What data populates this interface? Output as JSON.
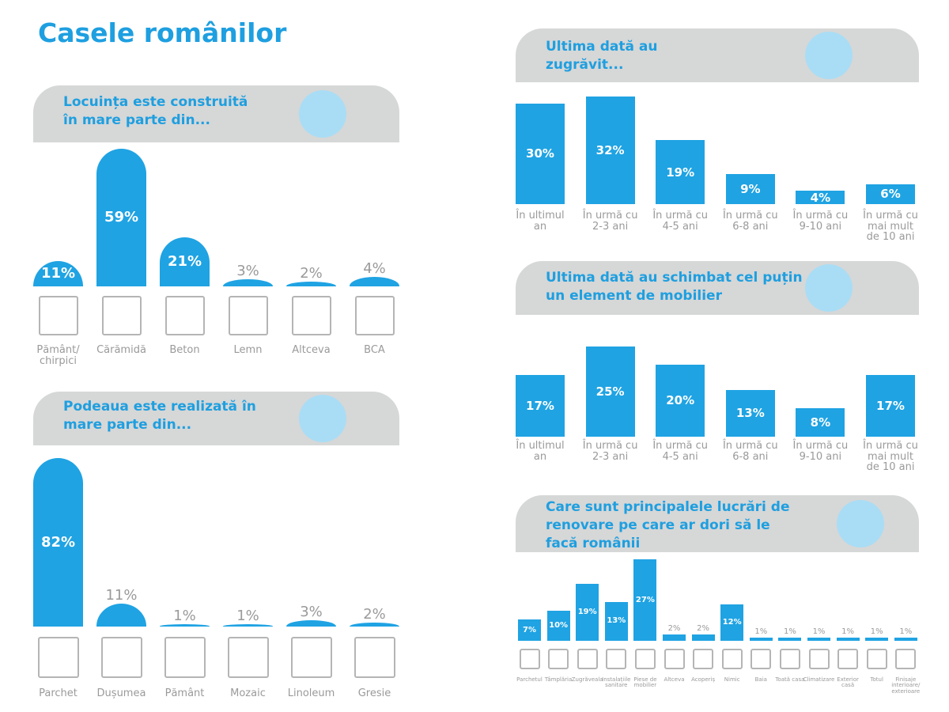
{
  "title": "Casele românilor",
  "chart_data": [
    {
      "type": "bar",
      "title": "Locuința este construită în mare parte din...",
      "color": "#1fa3e3",
      "categories": [
        "Pământ/ chirpici",
        "Cărămidă",
        "Beton",
        "Lemn",
        "Altceva",
        "BCA"
      ],
      "values": [
        11,
        59,
        21,
        3,
        2,
        4
      ],
      "value_labels": [
        "11%",
        "59%",
        "21%",
        "3%",
        "2%",
        "4%"
      ]
    },
    {
      "type": "bar",
      "title": "Podeaua este realizată în mare parte din...",
      "color": "#1fa3e3",
      "categories": [
        "Parchet",
        "Dușumea",
        "Pământ",
        "Mozaic",
        "Linoleum",
        "Gresie"
      ],
      "values": [
        82,
        11,
        1,
        1,
        3,
        2
      ],
      "value_labels": [
        "82%",
        "11%",
        "1%",
        "1%",
        "3%",
        "2%"
      ]
    },
    {
      "type": "bar",
      "title": "Ultima dată au zugrăvit...",
      "color": "#1fa3e3",
      "categories": [
        "În ultimul an",
        "În urmă cu 2-3 ani",
        "În urmă cu 4-5 ani",
        "În urmă cu 6-8 ani",
        "În urmă cu 9-10 ani",
        "În urmă cu mai mult de 10 ani"
      ],
      "values": [
        30,
        32,
        19,
        9,
        4,
        6
      ],
      "value_labels": [
        "30%",
        "32%",
        "19%",
        "9%",
        "4%",
        "6%"
      ]
    },
    {
      "type": "bar",
      "title": "Ultima dată au schimbat cel puțin un element de mobilier",
      "color": "#1fa3e3",
      "categories": [
        "În ultimul an",
        "În urmă cu 2-3 ani",
        "În urmă cu 4-5 ani",
        "În urmă cu 6-8 ani",
        "În urmă cu 9-10 ani",
        "În urmă cu mai mult de 10 ani"
      ],
      "values": [
        17,
        25,
        20,
        13,
        8,
        17
      ],
      "value_labels": [
        "17%",
        "25%",
        "20%",
        "13%",
        "8%",
        "17%"
      ]
    },
    {
      "type": "bar",
      "title": "Care sunt principalele lucrări de renovare pe care ar dori să le facă românii",
      "color": "#1fa3e3",
      "categories": [
        "Parchetul",
        "Tâmplăria",
        "Zugrăveala",
        "Instalațiile sanitare",
        "Piese de mobilier",
        "Altceva",
        "Acoperiș",
        "Nimic",
        "Baia",
        "Toată casa",
        "Climatizare",
        "Exterior casă",
        "Totul",
        "Finisaje interioare/ exterioare"
      ],
      "values": [
        7,
        10,
        19,
        13,
        27,
        2,
        2,
        12,
        1,
        1,
        1,
        1,
        1,
        1
      ],
      "value_labels": [
        "7%",
        "10%",
        "19%",
        "13%",
        "27%",
        "2%",
        "2%",
        "12%",
        "1%",
        "1%",
        "1%",
        "1%",
        "1%",
        "1%"
      ]
    }
  ]
}
